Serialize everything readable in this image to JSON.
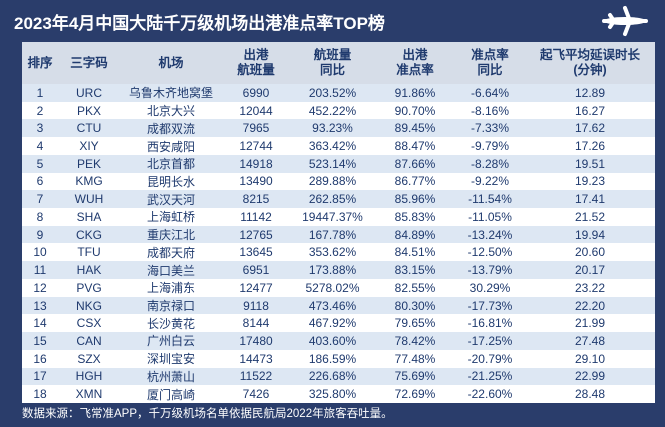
{
  "header": {
    "title": "2023年4月中国大陆千万级机场出港准点率TOP榜"
  },
  "table": {
    "columns": [
      [
        "排序"
      ],
      [
        "三字码"
      ],
      [
        "机场"
      ],
      [
        "出港",
        "航班量"
      ],
      [
        "航班量",
        "同比"
      ],
      [
        "出港",
        "准点率"
      ],
      [
        "准点率",
        "同比"
      ],
      [
        "起飞平均延误时长",
        "(分钟)"
      ]
    ],
    "rows": [
      [
        "1",
        "URC",
        "乌鲁木齐地窝堡",
        "6990",
        "203.52%",
        "91.86%",
        "-6.64%",
        "12.89"
      ],
      [
        "2",
        "PKX",
        "北京大兴",
        "12044",
        "452.22%",
        "90.70%",
        "-8.16%",
        "16.27"
      ],
      [
        "3",
        "CTU",
        "成都双流",
        "7965",
        "93.23%",
        "89.45%",
        "-7.33%",
        "17.62"
      ],
      [
        "4",
        "XIY",
        "西安咸阳",
        "12744",
        "363.42%",
        "88.47%",
        "-9.79%",
        "17.26"
      ],
      [
        "5",
        "PEK",
        "北京首都",
        "14918",
        "523.14%",
        "87.66%",
        "-8.28%",
        "19.51"
      ],
      [
        "6",
        "KMG",
        "昆明长水",
        "13490",
        "289.88%",
        "86.77%",
        "-9.22%",
        "19.23"
      ],
      [
        "7",
        "WUH",
        "武汉天河",
        "8215",
        "262.85%",
        "85.96%",
        "-11.54%",
        "17.41"
      ],
      [
        "8",
        "SHA",
        "上海虹桥",
        "11142",
        "19447.37%",
        "85.83%",
        "-11.05%",
        "21.52"
      ],
      [
        "9",
        "CKG",
        "重庆江北",
        "12765",
        "167.78%",
        "84.89%",
        "-13.24%",
        "19.94"
      ],
      [
        "10",
        "TFU",
        "成都天府",
        "13645",
        "353.62%",
        "84.51%",
        "-12.50%",
        "20.60"
      ],
      [
        "11",
        "HAK",
        "海口美兰",
        "6951",
        "173.88%",
        "83.15%",
        "-13.79%",
        "20.17"
      ],
      [
        "12",
        "PVG",
        "上海浦东",
        "12477",
        "5278.02%",
        "82.55%",
        "30.29%",
        "23.22"
      ],
      [
        "13",
        "NKG",
        "南京禄口",
        "9118",
        "473.46%",
        "80.30%",
        "-17.73%",
        "22.20"
      ],
      [
        "14",
        "CSX",
        "长沙黄花",
        "8144",
        "467.92%",
        "79.65%",
        "-16.81%",
        "21.99"
      ],
      [
        "15",
        "CAN",
        "广州白云",
        "17480",
        "403.60%",
        "78.42%",
        "-17.25%",
        "27.48"
      ],
      [
        "16",
        "SZX",
        "深圳宝安",
        "14473",
        "186.59%",
        "77.48%",
        "-20.79%",
        "29.10"
      ],
      [
        "17",
        "HGH",
        "杭州萧山",
        "11522",
        "226.68%",
        "75.69%",
        "-21.25%",
        "22.99"
      ],
      [
        "18",
        "XMN",
        "厦门高崎",
        "7426",
        "325.80%",
        "72.69%",
        "-22.60%",
        "28.48"
      ]
    ]
  },
  "footer": {
    "note": "数据来源：飞常准APP，千万级机场名单依据民航局2022年旅客吞吐量。"
  }
}
